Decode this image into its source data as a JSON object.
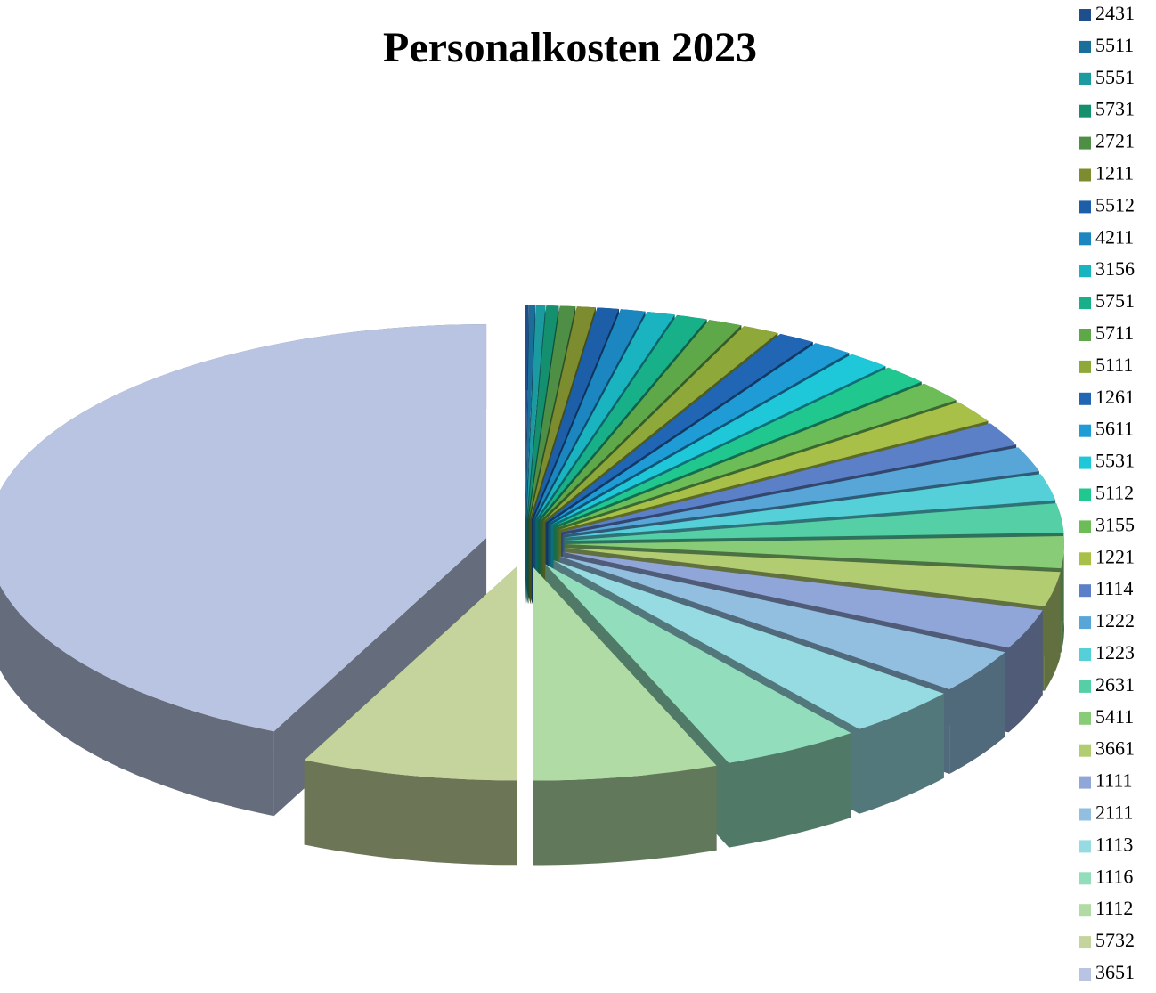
{
  "chart_data": {
    "type": "pie",
    "title": "Personalkosten 2023",
    "categories": [
      "2431",
      "5511",
      "5551",
      "5731",
      "2721",
      "1211",
      "5512",
      "4211",
      "3156",
      "5751",
      "5711",
      "5111",
      "1261",
      "5611",
      "5531",
      "5112",
      "3155",
      "1221",
      "1114",
      "1222",
      "1223",
      "2631",
      "5411",
      "3661",
      "1111",
      "2111",
      "1113",
      "1116",
      "1112",
      "5732",
      "3651"
    ],
    "values": [
      0.1,
      0.2,
      0.3,
      0.4,
      0.5,
      0.6,
      0.7,
      0.8,
      0.9,
      1.0,
      1.1,
      1.2,
      1.2,
      1.3,
      1.4,
      1.5,
      1.6,
      1.7,
      1.8,
      1.9,
      2.0,
      2.2,
      2.4,
      2.6,
      3.0,
      3.3,
      3.8,
      4.5,
      6.0,
      7.0,
      43.0
    ],
    "colors": [
      "#1f4e8c",
      "#1a6f9a",
      "#1b9aa0",
      "#15906e",
      "#4e8f45",
      "#7d8c2e",
      "#1c5fa8",
      "#1b86c0",
      "#1ab3c0",
      "#17b088",
      "#5ea84a",
      "#8fa83a",
      "#2166b4",
      "#1f9bd6",
      "#1ec8d8",
      "#20c890",
      "#6cbd58",
      "#a8c048",
      "#5b80c8",
      "#58a6d8",
      "#55cfd8",
      "#55d0a6",
      "#88cc78",
      "#b2cc72",
      "#90a6d8",
      "#92bfe0",
      "#96dbe2",
      "#92ddbc",
      "#b0dba4",
      "#c4d49c",
      "#b8c4e2"
    ],
    "legend": "right"
  }
}
